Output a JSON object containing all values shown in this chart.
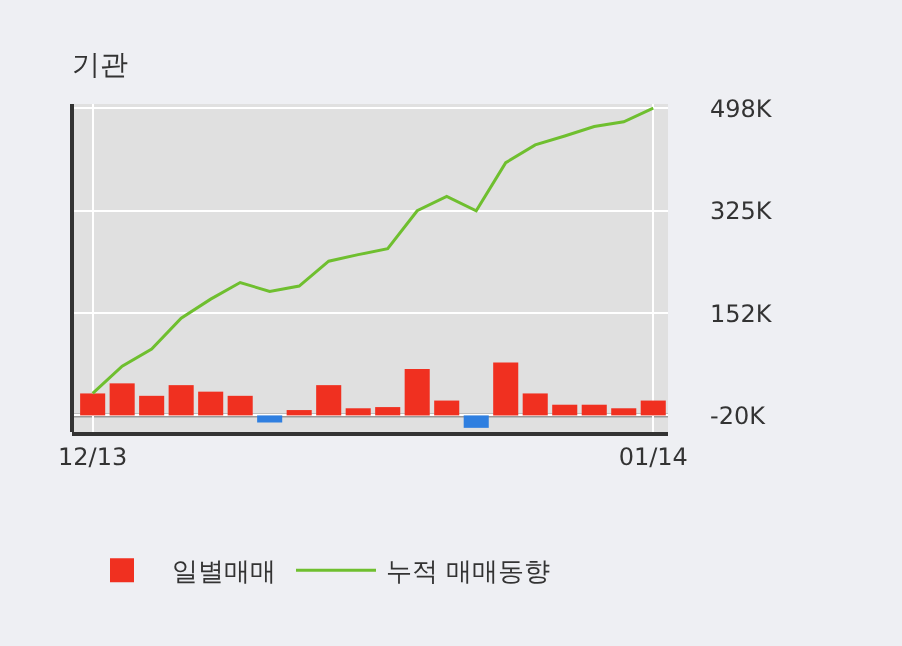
{
  "chart_data": {
    "type": "bar",
    "title": "기관",
    "categories": [
      "12/13",
      null,
      null,
      null,
      null,
      null,
      null,
      null,
      null,
      null,
      null,
      null,
      null,
      null,
      null,
      null,
      null,
      null,
      null,
      "01/14"
    ],
    "series": [
      {
        "name": "일별매매",
        "colors": [
          "#f03020",
          "#f03020",
          "#f03020",
          "#f03020",
          "#f03020",
          "#f03020",
          "#2f7fe0",
          "#f03020",
          "#f03020",
          "#f03020",
          "#f03020",
          "#f03020",
          "#f03020",
          "#2f7fe0",
          "#f03020",
          "#f03020",
          "#f03020",
          "#f03020",
          "#f03020",
          "#f03020"
        ],
        "base": [
          -20000,
          -20000,
          -20000,
          -20000,
          -20000,
          -20000,
          -20000,
          -20000,
          -20000,
          -20000,
          -20000,
          -20000,
          -20000,
          -20000,
          -20000,
          -20000,
          -20000,
          -20000,
          -20000,
          -20000
        ],
        "values": [
          37000,
          54000,
          33000,
          51000,
          40000,
          33000,
          -12000,
          9000,
          51000,
          12000,
          14000,
          78000,
          25000,
          -21000,
          89000,
          37000,
          18000,
          18000,
          12000,
          25000
        ]
      },
      {
        "name": "누적 매매동향",
        "type": "line",
        "color": "#6fbf2f",
        "values": [
          17000,
          63000,
          92000,
          144000,
          176000,
          204000,
          189000,
          198000,
          240000,
          251000,
          261000,
          325000,
          349000,
          325000,
          406000,
          436000,
          451000,
          467000,
          475000,
          498000
        ]
      }
    ],
    "ylim": [
      -48000,
      505000
    ],
    "yticks": [
      {
        "value": 498000,
        "label": "498K"
      },
      {
        "value": 325000,
        "label": "325K"
      },
      {
        "value": 152000,
        "label": "152K"
      },
      {
        "value": -20000,
        "label": "-20K"
      }
    ],
    "ref_lines": [
      {
        "axis": "y",
        "value": -20000,
        "color": "#999999"
      }
    ],
    "grid": true,
    "legend": "bottom",
    "marker": "none",
    "line_style": "solid"
  }
}
